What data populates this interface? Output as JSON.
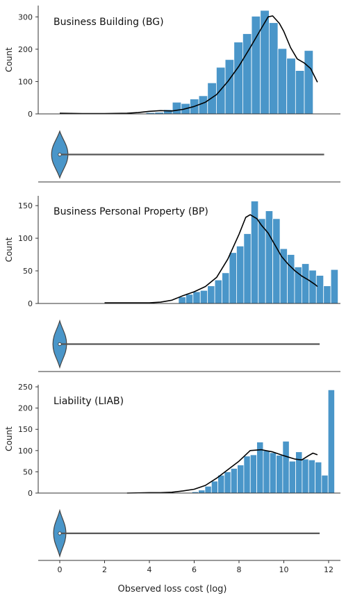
{
  "figure": {
    "xlabel": "Observed loss cost (log)",
    "x_ticks": [
      0,
      2,
      4,
      6,
      8,
      10,
      12
    ],
    "xlim": [
      -1,
      12.5
    ],
    "bar_color": "#4a96c9",
    "violin_color": "#4a96c9"
  },
  "chart_data": [
    {
      "type": "bar",
      "title": "Business Building (BG)",
      "ylabel": "Count",
      "ylim": [
        0,
        335
      ],
      "y_ticks": [
        0,
        100,
        200,
        300
      ],
      "bin_start": 3.85,
      "bin_width": 0.3925,
      "values": [
        4,
        5,
        13,
        36,
        32,
        46,
        56,
        96,
        144,
        168,
        222,
        248,
        302,
        320,
        282,
        202,
        172,
        134,
        196
      ],
      "kde": [
        [
          0,
          2
        ],
        [
          1,
          1
        ],
        [
          2,
          1
        ],
        [
          3,
          2
        ],
        [
          3.5,
          4
        ],
        [
          4,
          8
        ],
        [
          4.5,
          10
        ],
        [
          5,
          9
        ],
        [
          5.5,
          14
        ],
        [
          6,
          23
        ],
        [
          6.5,
          36
        ],
        [
          7,
          60
        ],
        [
          7.5,
          100
        ],
        [
          8,
          148
        ],
        [
          8.5,
          205
        ],
        [
          9,
          265
        ],
        [
          9.3,
          300
        ],
        [
          9.5,
          303
        ],
        [
          9.8,
          280
        ],
        [
          10,
          255
        ],
        [
          10.3,
          205
        ],
        [
          10.6,
          170
        ],
        [
          10.9,
          158
        ],
        [
          11.2,
          140
        ],
        [
          11.5,
          98
        ]
      ],
      "violin": {
        "center": 0,
        "spread": 0.35,
        "tail_end": 11.8
      }
    },
    {
      "type": "bar",
      "title": "Business Personal Property (BP)",
      "ylabel": "Count",
      "ylim": [
        0,
        165
      ],
      "y_ticks": [
        0,
        50,
        100,
        150
      ],
      "bin_start": 5.3,
      "bin_width": 0.3237,
      "values": [
        10,
        14,
        18,
        20,
        27,
        36,
        47,
        78,
        88,
        107,
        157,
        130,
        142,
        130,
        84,
        75,
        56,
        61,
        51,
        43,
        27,
        52
      ],
      "kde": [
        [
          2,
          1
        ],
        [
          3,
          1
        ],
        [
          4,
          1
        ],
        [
          4.5,
          2
        ],
        [
          5,
          5
        ],
        [
          5.5,
          12
        ],
        [
          6,
          18
        ],
        [
          6.5,
          26
        ],
        [
          7,
          40
        ],
        [
          7.5,
          68
        ],
        [
          8,
          106
        ],
        [
          8.3,
          132
        ],
        [
          8.5,
          136
        ],
        [
          8.8,
          130
        ],
        [
          9,
          120
        ],
        [
          9.3,
          108
        ],
        [
          9.6,
          90
        ],
        [
          9.9,
          72
        ],
        [
          10.2,
          60
        ],
        [
          10.5,
          50
        ],
        [
          10.8,
          42
        ],
        [
          11.1,
          36
        ],
        [
          11.4,
          29
        ],
        [
          11.5,
          26
        ]
      ],
      "violin": {
        "center": 0,
        "spread": 0.25,
        "tail_end": 11.6
      }
    },
    {
      "type": "bar",
      "title": "Liability (LIAB)",
      "ylabel": "Count",
      "ylim": [
        0,
        255
      ],
      "y_ticks": [
        0,
        50,
        100,
        150,
        200,
        250
      ],
      "bin_start": 5.9,
      "bin_width": 0.2893,
      "values": [
        3,
        7,
        16,
        28,
        42,
        50,
        58,
        66,
        87,
        90,
        120,
        100,
        95,
        89,
        122,
        75,
        97,
        80,
        78,
        73,
        42,
        243
      ],
      "kde": [
        [
          3,
          0
        ],
        [
          4,
          1
        ],
        [
          4.5,
          1
        ],
        [
          5,
          2
        ],
        [
          5.5,
          5
        ],
        [
          6,
          9
        ],
        [
          6.5,
          18
        ],
        [
          7,
          35
        ],
        [
          7.5,
          55
        ],
        [
          8,
          75
        ],
        [
          8.5,
          100
        ],
        [
          9,
          102
        ],
        [
          9.5,
          97
        ],
        [
          10,
          88
        ],
        [
          10.5,
          80
        ],
        [
          10.8,
          78
        ],
        [
          11.1,
          88
        ],
        [
          11.3,
          94
        ],
        [
          11.5,
          90
        ]
      ],
      "violin": {
        "center": 0,
        "spread": 0.2,
        "tail_end": 11.6
      }
    }
  ]
}
